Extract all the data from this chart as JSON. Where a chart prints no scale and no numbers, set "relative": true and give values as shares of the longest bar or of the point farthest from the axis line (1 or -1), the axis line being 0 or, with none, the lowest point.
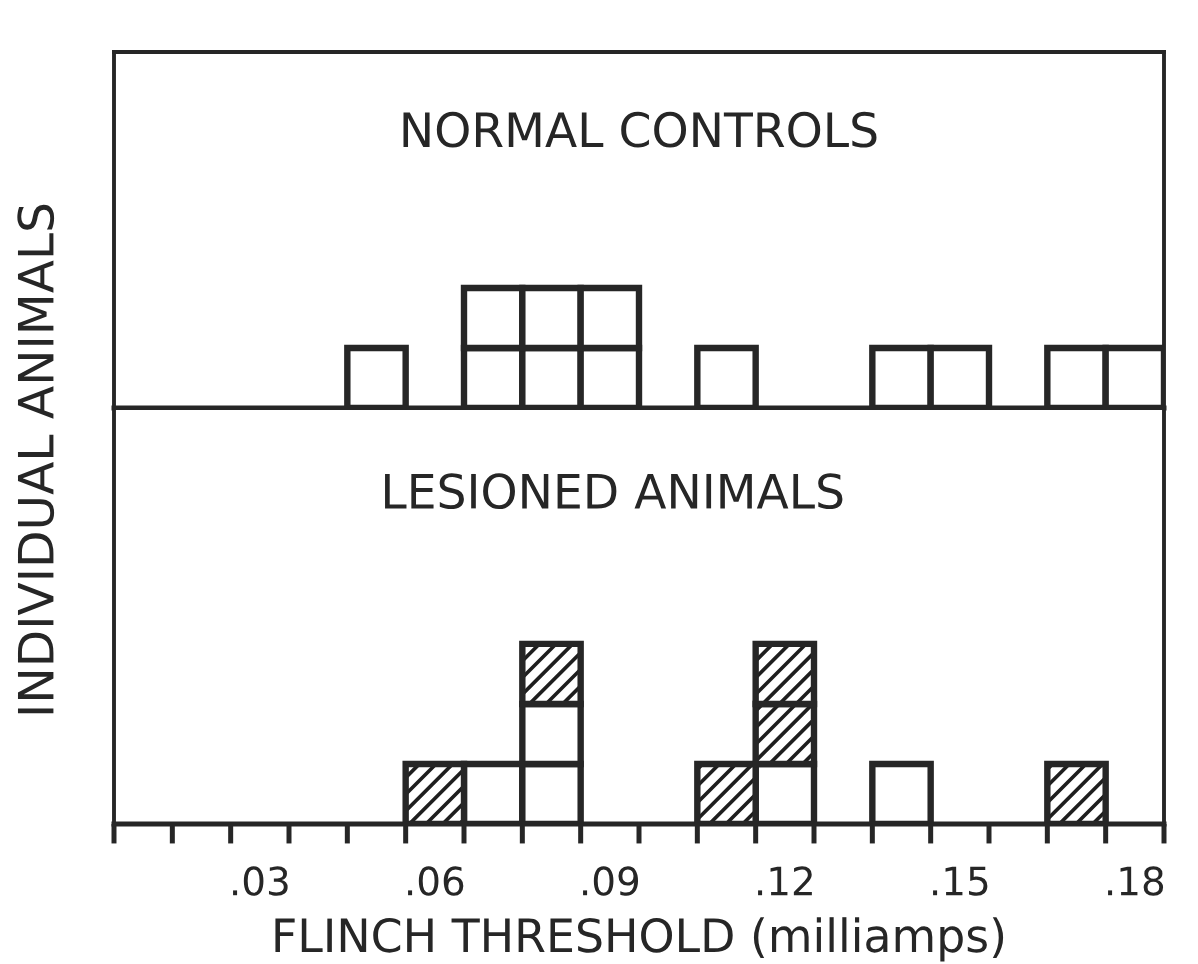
{
  "chart_data": [
    {
      "type": "bar",
      "title": "NORMAL CONTROLS",
      "ylabel": "INDIVIDUAL ANIMALS",
      "relative": true,
      "stacked": true,
      "tick_labels": false,
      "xlim": [
        0.005,
        0.185
      ],
      "x": [
        0.05,
        0.07,
        0.08,
        0.09,
        0.11,
        0.14,
        0.15,
        0.17,
        0.18
      ],
      "series": [
        {
          "color": "#ffffff",
          "values": [
            0.5,
            0.5,
            0.5,
            0.5,
            0.5,
            0.5,
            0.5,
            0.5,
            0.5
          ]
        },
        {
          "color": "#ffffff",
          "values": [
            null,
            0.5,
            0.5,
            0.5,
            null,
            null,
            null,
            null,
            null
          ]
        }
      ]
    },
    {
      "type": "bar",
      "title": "LESIONED ANIMALS",
      "xlabel": "FLINCH THRESHOLD (milliamps)",
      "relative": true,
      "stacked": true,
      "tick_labels": "x",
      "xlim": [
        0.005,
        0.185
      ],
      "xticks": [
        {
          "value": 0.005,
          "label": null
        },
        {
          "value": 0.015,
          "label": null
        },
        {
          "value": 0.025,
          "label": null
        },
        {
          "value": 0.035,
          "label": null
        },
        {
          "value": 0.045,
          "label": null
        },
        {
          "value": 0.055,
          "label": null
        },
        {
          "value": 0.065,
          "label": null
        },
        {
          "value": 0.075,
          "label": null
        },
        {
          "value": 0.085,
          "label": null
        },
        {
          "value": 0.095,
          "label": null
        },
        {
          "value": 0.105,
          "label": null
        },
        {
          "value": 0.115,
          "label": null
        },
        {
          "value": 0.125,
          "label": null
        },
        {
          "value": 0.135,
          "label": null
        },
        {
          "value": 0.145,
          "label": null
        },
        {
          "value": 0.155,
          "label": null
        },
        {
          "value": 0.165,
          "label": null
        },
        {
          "value": 0.175,
          "label": null
        },
        {
          "value": 0.185,
          "label": null
        },
        {
          "value": 0.03,
          "label": ".03"
        },
        {
          "value": 0.06,
          "label": ".06"
        },
        {
          "value": 0.09,
          "label": ".09"
        },
        {
          "value": 0.12,
          "label": ".12"
        },
        {
          "value": 0.15,
          "label": ".15"
        },
        {
          "value": 0.18,
          "label": ".18"
        }
      ],
      "x": [
        0.06,
        0.07,
        0.08,
        0.11,
        0.12,
        0.14,
        0.17
      ],
      "series": [
        {
          "color": "#ffffff",
          "values": [
            null,
            0.333,
            0.333,
            null,
            0.333,
            0.333,
            null
          ]
        },
        {
          "color": "#ffffff",
          "values": [
            null,
            null,
            0.333,
            null,
            null,
            null,
            null
          ]
        },
        {
          "color": "#1e1e1e",
          "values": [
            0.333,
            null,
            0.334,
            0.333,
            0.333,
            null,
            0.333
          ]
        },
        {
          "color": "#1e1e1e",
          "values": [
            null,
            null,
            null,
            null,
            0.334,
            null,
            null
          ]
        }
      ]
    }
  ]
}
